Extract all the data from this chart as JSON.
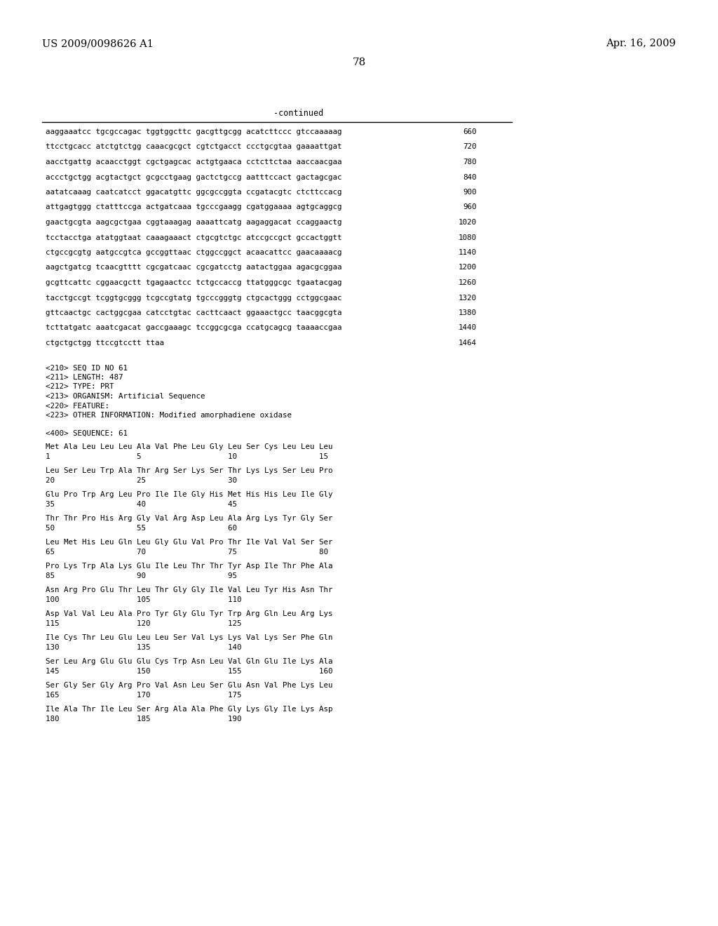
{
  "header_left": "US 2009/0098626 A1",
  "header_right": "Apr. 16, 2009",
  "page_number": "78",
  "continued_label": "-continued",
  "background_color": "#ffffff",
  "text_color": "#000000",
  "dna_lines": [
    [
      "aaggaaatcc tgcgccagac tggtggcttc gacgttgcgg acatcttccc gtccaaaaag",
      "660"
    ],
    [
      "ttcctgcacc atctgtctgg caaacgcgct cgtctgacct ccctgcgtaa gaaaattgat",
      "720"
    ],
    [
      "aacctgattg acaacctggt cgctgagcac actgtgaaca cctcttctaa aaccaacgaa",
      "780"
    ],
    [
      "accctgctgg acgtactgct gcgcctgaag gactctgccg aatttccact gactagcgac",
      "840"
    ],
    [
      "aatatcaaag caatcatcct ggacatgttc ggcgccggta ccgatacgtc ctcttccacg",
      "900"
    ],
    [
      "attgagtggg ctatttccga actgatcaaa tgcccgaagg cgatggaaaa agtgcaggcg",
      "960"
    ],
    [
      "gaactgcgta aagcgctgaa cggtaaagag aaaattcatg aagaggacat ccaggaactg",
      "1020"
    ],
    [
      "tcctacctga atatggtaat caaagaaact ctgcgtctgc atccgccgct gccactggtt",
      "1080"
    ],
    [
      "ctgccgcgtg aatgccgtca gccggttaac ctggccggct acaacattcc gaacaaaacg",
      "1140"
    ],
    [
      "aagctgatcg tcaacgtttt cgcgatcaac cgcgatcctg aatactggaa agacgcggaa",
      "1200"
    ],
    [
      "gcgttcattc cggaacgctt tgagaactcc tctgccaccg ttatgggcgc tgaatacgag",
      "1260"
    ],
    [
      "tacctgccgt tcggtgcggg tcgccgtatg tgcccgggtg ctgcactggg cctggcgaac",
      "1320"
    ],
    [
      "gttcaactgc cactggcgaa catcctgtac cacttcaact ggaaactgcc taacggcgta",
      "1380"
    ],
    [
      "tcttatgatc aaatcgacat gaccgaaagc tccggcgcga ccatgcagcg taaaaccgaa",
      "1440"
    ],
    [
      "ctgctgctgg ttccgtcctt ttaa",
      "1464"
    ]
  ],
  "metadata_lines": [
    "<210> SEQ ID NO 61",
    "<211> LENGTH: 487",
    "<212> TYPE: PRT",
    "<213> ORGANISM: Artificial Sequence",
    "<220> FEATURE:",
    "<223> OTHER INFORMATION: Modified amorphadiene oxidase"
  ],
  "sequence_label": "<400> SEQUENCE: 61",
  "protein_blocks": [
    {
      "seq_line": "Met Ala Leu Leu Leu Ala Val Phe Leu Gly Leu Ser Cys Leu Leu Leu",
      "num_line": "1                   5                   10                  15"
    },
    {
      "seq_line": "Leu Ser Leu Trp Ala Thr Arg Ser Lys Ser Thr Lys Lys Ser Leu Pro",
      "num_line": "20                  25                  30"
    },
    {
      "seq_line": "Glu Pro Trp Arg Leu Pro Ile Ile Gly His Met His His Leu Ile Gly",
      "num_line": "35                  40                  45"
    },
    {
      "seq_line": "Thr Thr Pro His Arg Gly Val Arg Asp Leu Ala Arg Lys Tyr Gly Ser",
      "num_line": "50                  55                  60"
    },
    {
      "seq_line": "Leu Met His Leu Gln Leu Gly Glu Val Pro Thr Ile Val Val Ser Ser",
      "num_line": "65                  70                  75                  80"
    },
    {
      "seq_line": "Pro Lys Trp Ala Lys Glu Ile Leu Thr Thr Tyr Asp Ile Thr Phe Ala",
      "num_line": "85                  90                  95"
    },
    {
      "seq_line": "Asn Arg Pro Glu Thr Leu Thr Gly Gly Ile Val Leu Tyr His Asn Thr",
      "num_line": "100                 105                 110"
    },
    {
      "seq_line": "Asp Val Val Leu Ala Pro Tyr Gly Glu Tyr Trp Arg Gln Leu Arg Lys",
      "num_line": "115                 120                 125"
    },
    {
      "seq_line": "Ile Cys Thr Leu Glu Leu Leu Ser Val Lys Lys Val Lys Ser Phe Gln",
      "num_line": "130                 135                 140"
    },
    {
      "seq_line": "Ser Leu Arg Glu Glu Glu Cys Trp Asn Leu Val Gln Glu Ile Lys Ala",
      "num_line": "145                 150                 155                 160"
    },
    {
      "seq_line": "Ser Gly Ser Gly Arg Pro Val Asn Leu Ser Glu Asn Val Phe Lys Leu",
      "num_line": "165                 170                 175"
    },
    {
      "seq_line": "Ile Ala Thr Ile Leu Ser Arg Ala Ala Phe Gly Lys Gly Ile Lys Asp",
      "num_line": "180                 185                 190"
    }
  ],
  "fig_width": 10.24,
  "fig_height": 13.2,
  "dpi": 100
}
